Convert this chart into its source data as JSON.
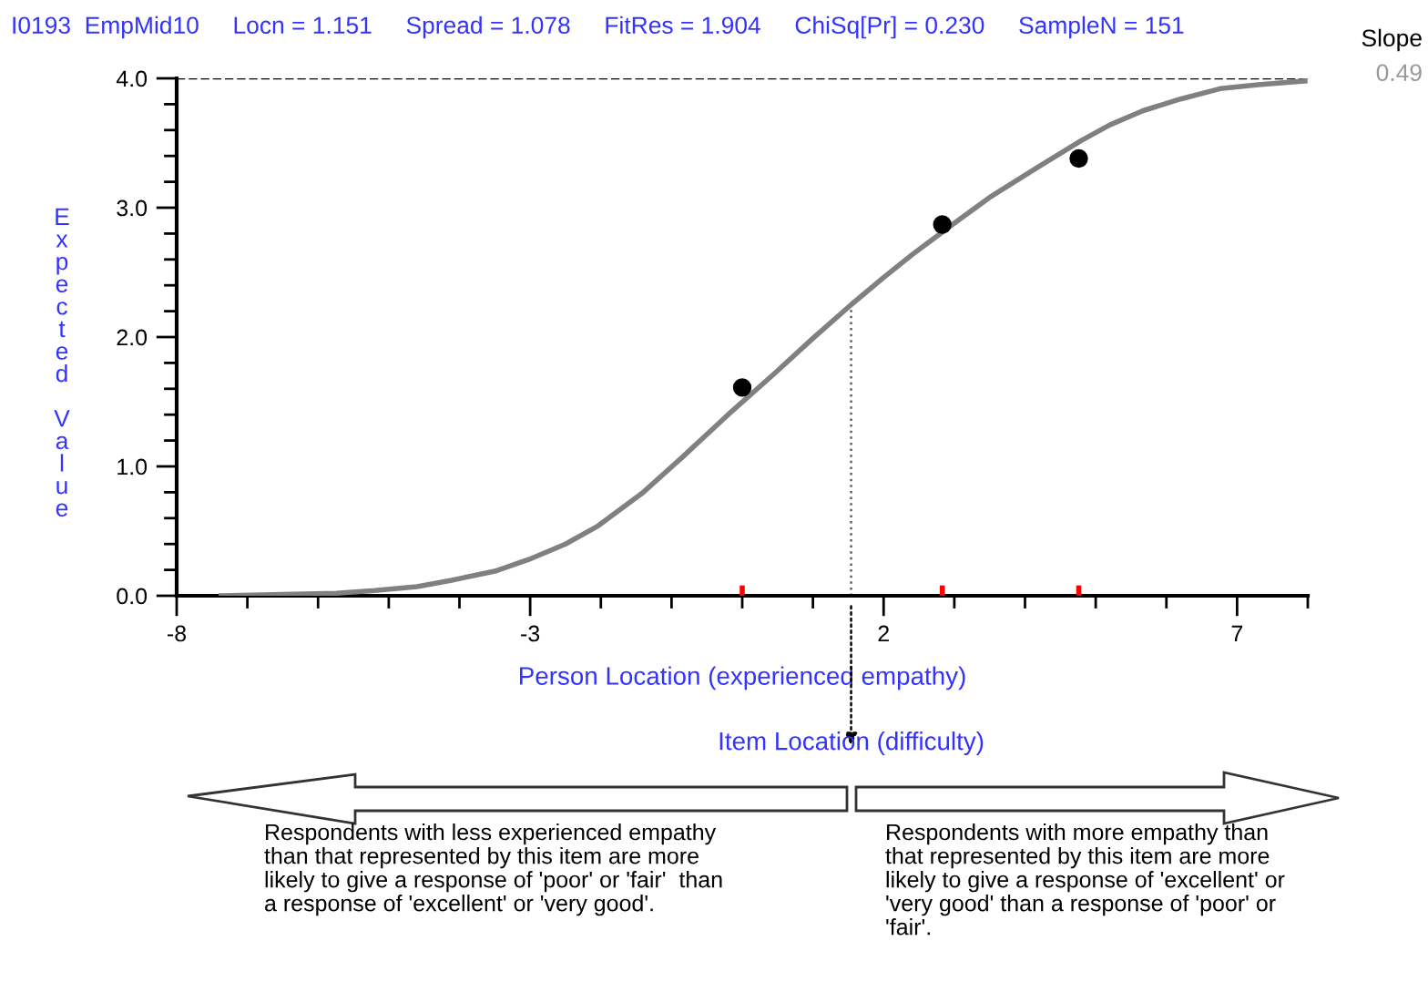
{
  "chart_data": {
    "type": "line",
    "title": "I0193  EmpMid10     Locn = 1.151     Spread = 1.078     FitRes = 1.904     ChiSq[Pr] = 0.230     SampleN = 151",
    "xlabel": "Person Location (experienced empathy)",
    "ylabel": "Expected Value",
    "series": [
      {
        "color": "#808080",
        "marker": "none",
        "x": [
          -7.37,
          -6.5,
          -5.74,
          -5.2,
          -4.6,
          -4.11,
          -3.5,
          -3.02,
          -2.5,
          -2.04,
          -1.4,
          -0.85,
          -0.2,
          0.46,
          1.0,
          1.54,
          2.0,
          2.41,
          3.0,
          3.5,
          4.2,
          4.8,
          5.2,
          5.67,
          6.2,
          6.76,
          7.3,
          7.96
        ],
        "values": [
          0.0,
          0.01,
          0.02,
          0.04,
          0.07,
          0.12,
          0.19,
          0.28,
          0.4,
          0.54,
          0.8,
          1.07,
          1.4,
          1.72,
          1.99,
          2.25,
          2.46,
          2.64,
          2.88,
          3.08,
          3.32,
          3.52,
          3.64,
          3.75,
          3.84,
          3.92,
          3.95,
          3.98
        ]
      },
      {
        "type": "scatter",
        "color": "#000000",
        "marker": "circle",
        "x": [
          0.0,
          2.83,
          4.76
        ],
        "values": [
          1.61,
          2.87,
          3.38
        ]
      }
    ],
    "xlim": [
      -8,
      8
    ],
    "ylim": [
      0,
      4
    ],
    "xticks": [
      -8,
      -3,
      2,
      7
    ],
    "yticks": [
      {
        "value": 0,
        "label": "0.0"
      },
      {
        "value": 1,
        "label": "1.0"
      },
      {
        "value": 2,
        "label": "2.0"
      },
      {
        "value": 3,
        "label": "3.0"
      },
      {
        "value": 4,
        "label": "4.0"
      }
    ],
    "ref_lines": [
      {
        "axis": "y",
        "value": 4,
        "line_style": "dashed",
        "color": "#000000"
      },
      {
        "axis": "x",
        "value": 1.54,
        "line_style": "dotted",
        "color": "#606060",
        "label": "Item Location (difficulty)"
      }
    ],
    "annotations": [
      "Slope",
      "0.49",
      "Respondents with less experienced empathy\nthan that represented by this item are more\nlikely to give a response of 'poor' or 'fair'  than\na response of 'excellent' or 'very good'.",
      "Respondents with more empathy than\nthat represented by this item are more\nlikely to give a response of 'excellent' or\n'very good' than a response of 'poor' or\n'fair'."
    ]
  }
}
